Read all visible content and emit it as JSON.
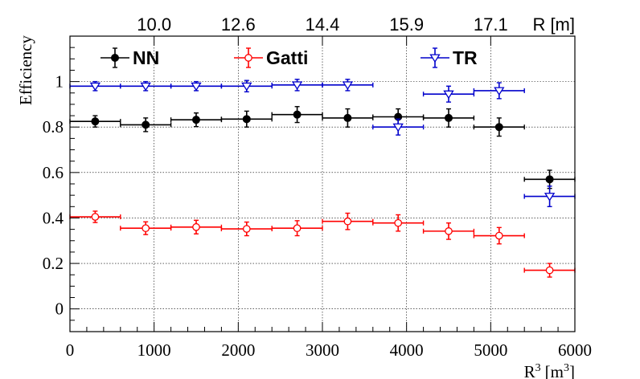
{
  "chart_data": {
    "type": "scatter",
    "title": "",
    "xlabel": "R",
    "xlabel_sup": "3",
    "xlabel_unit": "[m",
    "xlabel_unit_sup": "3",
    "xlabel_close": "]",
    "ylabel": "Efficiency",
    "xlim": [
      0,
      6000
    ],
    "ylim": [
      -0.1,
      1.2
    ],
    "grid": true,
    "legend_position": "top",
    "x_ticks": [
      "0",
      "1000",
      "2000",
      "3000",
      "4000",
      "5000",
      "6000"
    ],
    "y_ticks": [
      "0",
      "0.2",
      "0.4",
      "0.6",
      "0.8",
      "1"
    ],
    "top_axis": {
      "label": "R [m]",
      "ticks": [
        {
          "x": 1000,
          "label": "10.0"
        },
        {
          "x": 2000,
          "label": "12.6"
        },
        {
          "x": 3000,
          "label": "14.4"
        },
        {
          "x": 4000,
          "label": "15.9"
        },
        {
          "x": 5000,
          "label": "17.1"
        }
      ]
    },
    "series": [
      {
        "name": "NN",
        "color": "#000000",
        "marker": "filled-circle",
        "points": [
          {
            "x": 300,
            "xerr": 300,
            "y": 0.825,
            "yerr": 0.025
          },
          {
            "x": 900,
            "xerr": 300,
            "y": 0.81,
            "yerr": 0.03
          },
          {
            "x": 1500,
            "xerr": 300,
            "y": 0.832,
            "yerr": 0.03
          },
          {
            "x": 2100,
            "xerr": 300,
            "y": 0.835,
            "yerr": 0.035
          },
          {
            "x": 2700,
            "xerr": 300,
            "y": 0.855,
            "yerr": 0.035
          },
          {
            "x": 3300,
            "xerr": 300,
            "y": 0.84,
            "yerr": 0.04
          },
          {
            "x": 3900,
            "xerr": 300,
            "y": 0.845,
            "yerr": 0.035
          },
          {
            "x": 4500,
            "xerr": 300,
            "y": 0.84,
            "yerr": 0.04
          },
          {
            "x": 5100,
            "xerr": 300,
            "y": 0.8,
            "yerr": 0.04
          },
          {
            "x": 5700,
            "xerr": 300,
            "y": 0.57,
            "yerr": 0.04
          }
        ]
      },
      {
        "name": "Gatti",
        "color": "#ff0000",
        "marker": "open-circle",
        "points": [
          {
            "x": 300,
            "xerr": 300,
            "y": 0.405,
            "yerr": 0.025
          },
          {
            "x": 900,
            "xerr": 300,
            "y": 0.355,
            "yerr": 0.028
          },
          {
            "x": 1500,
            "xerr": 300,
            "y": 0.36,
            "yerr": 0.03
          },
          {
            "x": 2100,
            "xerr": 300,
            "y": 0.352,
            "yerr": 0.03
          },
          {
            "x": 2700,
            "xerr": 300,
            "y": 0.355,
            "yerr": 0.033
          },
          {
            "x": 3300,
            "xerr": 300,
            "y": 0.385,
            "yerr": 0.036
          },
          {
            "x": 3900,
            "xerr": 300,
            "y": 0.378,
            "yerr": 0.036
          },
          {
            "x": 4500,
            "xerr": 300,
            "y": 0.342,
            "yerr": 0.036
          },
          {
            "x": 5100,
            "xerr": 300,
            "y": 0.322,
            "yerr": 0.036
          },
          {
            "x": 5700,
            "xerr": 300,
            "y": 0.17,
            "yerr": 0.03
          }
        ]
      },
      {
        "name": "TR",
        "color": "#0000cc",
        "marker": "open-triangle-down",
        "points": [
          {
            "x": 300,
            "xerr": 300,
            "y": 0.98,
            "yerr": 0.02
          },
          {
            "x": 900,
            "xerr": 300,
            "y": 0.98,
            "yerr": 0.02
          },
          {
            "x": 1500,
            "xerr": 300,
            "y": 0.98,
            "yerr": 0.02
          },
          {
            "x": 2100,
            "xerr": 300,
            "y": 0.98,
            "yerr": 0.025
          },
          {
            "x": 2700,
            "xerr": 300,
            "y": 0.985,
            "yerr": 0.025
          },
          {
            "x": 3300,
            "xerr": 300,
            "y": 0.985,
            "yerr": 0.025
          },
          {
            "x": 3900,
            "xerr": 300,
            "y": 0.8,
            "yerr": 0.035
          },
          {
            "x": 4500,
            "xerr": 300,
            "y": 0.945,
            "yerr": 0.035
          },
          {
            "x": 5100,
            "xerr": 300,
            "y": 0.96,
            "yerr": 0.035
          },
          {
            "x": 5700,
            "xerr": 300,
            "y": 0.495,
            "yerr": 0.045
          }
        ]
      }
    ]
  }
}
